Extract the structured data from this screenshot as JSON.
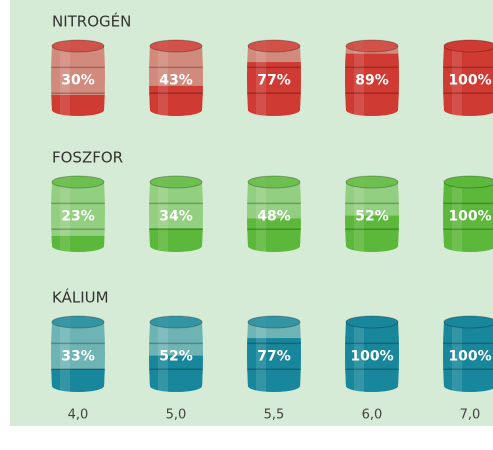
{
  "chart_data": {
    "type": "barrel",
    "categories": [
      "4,0",
      "5,0",
      "5,5",
      "6,0",
      "7,0"
    ],
    "ylim": [
      0,
      100
    ],
    "series": [
      {
        "name": "NITROGÉN",
        "color": "#cf3a33",
        "values": [
          30,
          43,
          77,
          89,
          100
        ],
        "value_labels": [
          "30%",
          "43%",
          "77%",
          "89%",
          "100%"
        ]
      },
      {
        "name": "FOSZFOR",
        "color": "#5cb83a",
        "values": [
          23,
          34,
          48,
          52,
          100
        ],
        "value_labels": [
          "23%",
          "34%",
          "48%",
          "52%",
          "100%"
        ]
      },
      {
        "name": "KÁLIUM",
        "color": "#19879b",
        "values": [
          33,
          52,
          77,
          100,
          100
        ],
        "value_labels": [
          "33%",
          "52%",
          "77%",
          "100%",
          "100%"
        ]
      }
    ]
  }
}
